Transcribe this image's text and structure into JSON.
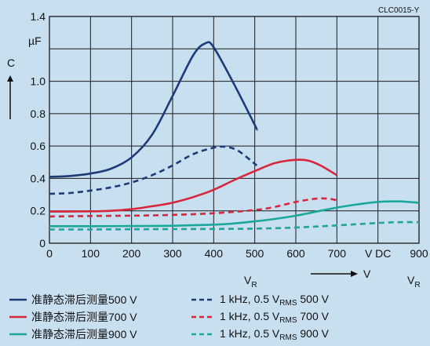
{
  "chart_data": {
    "type": "line",
    "id_label": "CLC0015-Y",
    "y_axis": {
      "label": "C",
      "unit": "µF",
      "ticks": [
        "0",
        "0.2",
        "0.4",
        "0.6",
        "0.8",
        "1.0",
        "1.4"
      ],
      "ylim": [
        0,
        1.4
      ]
    },
    "x_axis": {
      "ticks": [
        "0",
        "100",
        "200",
        "300",
        "400",
        "500",
        "600",
        "700",
        "V DC",
        "900"
      ],
      "xlim": [
        0,
        900
      ],
      "label_left": "V",
      "label_left_sub": "R",
      "label_right": "V",
      "label_right_sub": "R",
      "arrow_label": "V"
    },
    "grid": true,
    "series": [
      {
        "name": "准静态滞后测量500 V",
        "color": "#1f3a78",
        "dash": false,
        "points": [
          [
            0,
            0.41
          ],
          [
            50,
            0.415
          ],
          [
            100,
            0.43
          ],
          [
            150,
            0.46
          ],
          [
            200,
            0.53
          ],
          [
            250,
            0.67
          ],
          [
            300,
            0.91
          ],
          [
            350,
            1.16
          ],
          [
            380,
            1.235
          ],
          [
            400,
            1.21
          ],
          [
            450,
            0.98
          ],
          [
            500,
            0.73
          ],
          [
            505,
            0.7
          ]
        ]
      },
      {
        "name": "1 kHz, 0.5 V",
        "name_sub": "RMS",
        "name_tail": " 500 V",
        "color": "#1f3a78",
        "dash": true,
        "points": [
          [
            0,
            0.305
          ],
          [
            50,
            0.31
          ],
          [
            100,
            0.325
          ],
          [
            150,
            0.345
          ],
          [
            200,
            0.375
          ],
          [
            250,
            0.42
          ],
          [
            300,
            0.48
          ],
          [
            350,
            0.55
          ],
          [
            400,
            0.59
          ],
          [
            430,
            0.595
          ],
          [
            460,
            0.57
          ],
          [
            505,
            0.48
          ]
        ]
      },
      {
        "name": "准静态滞后测量700 V",
        "color": "#d7263d",
        "dash": false,
        "points": [
          [
            0,
            0.195
          ],
          [
            100,
            0.197
          ],
          [
            150,
            0.2
          ],
          [
            200,
            0.21
          ],
          [
            250,
            0.228
          ],
          [
            300,
            0.25
          ],
          [
            350,
            0.285
          ],
          [
            400,
            0.33
          ],
          [
            450,
            0.39
          ],
          [
            500,
            0.445
          ],
          [
            550,
            0.495
          ],
          [
            600,
            0.515
          ],
          [
            630,
            0.51
          ],
          [
            660,
            0.48
          ],
          [
            700,
            0.42
          ]
        ]
      },
      {
        "name": "1 kHz, 0.5 V",
        "name_sub": "RMS",
        "name_tail": " 700 V",
        "color": "#d7263d",
        "dash": true,
        "points": [
          [
            0,
            0.165
          ],
          [
            100,
            0.168
          ],
          [
            200,
            0.17
          ],
          [
            300,
            0.175
          ],
          [
            400,
            0.185
          ],
          [
            500,
            0.205
          ],
          [
            550,
            0.225
          ],
          [
            600,
            0.255
          ],
          [
            650,
            0.275
          ],
          [
            680,
            0.275
          ],
          [
            700,
            0.265
          ]
        ]
      },
      {
        "name": "准静态滞后测量900 V",
        "color": "#1aa89a",
        "dash": false,
        "points": [
          [
            0,
            0.105
          ],
          [
            100,
            0.105
          ],
          [
            200,
            0.106
          ],
          [
            300,
            0.108
          ],
          [
            400,
            0.115
          ],
          [
            450,
            0.122
          ],
          [
            500,
            0.135
          ],
          [
            550,
            0.15
          ],
          [
            600,
            0.17
          ],
          [
            650,
            0.195
          ],
          [
            700,
            0.22
          ],
          [
            750,
            0.24
          ],
          [
            800,
            0.255
          ],
          [
            850,
            0.258
          ],
          [
            900,
            0.25
          ]
        ]
      },
      {
        "name": "1 kHz, 0.5 V",
        "name_sub": "RMS",
        "name_tail": " 900 V",
        "color": "#1aa89a",
        "dash": true,
        "points": [
          [
            0,
            0.085
          ],
          [
            100,
            0.085
          ],
          [
            200,
            0.086
          ],
          [
            300,
            0.087
          ],
          [
            400,
            0.088
          ],
          [
            500,
            0.09
          ],
          [
            600,
            0.097
          ],
          [
            700,
            0.11
          ],
          [
            800,
            0.125
          ],
          [
            850,
            0.13
          ],
          [
            900,
            0.13
          ]
        ]
      }
    ]
  }
}
